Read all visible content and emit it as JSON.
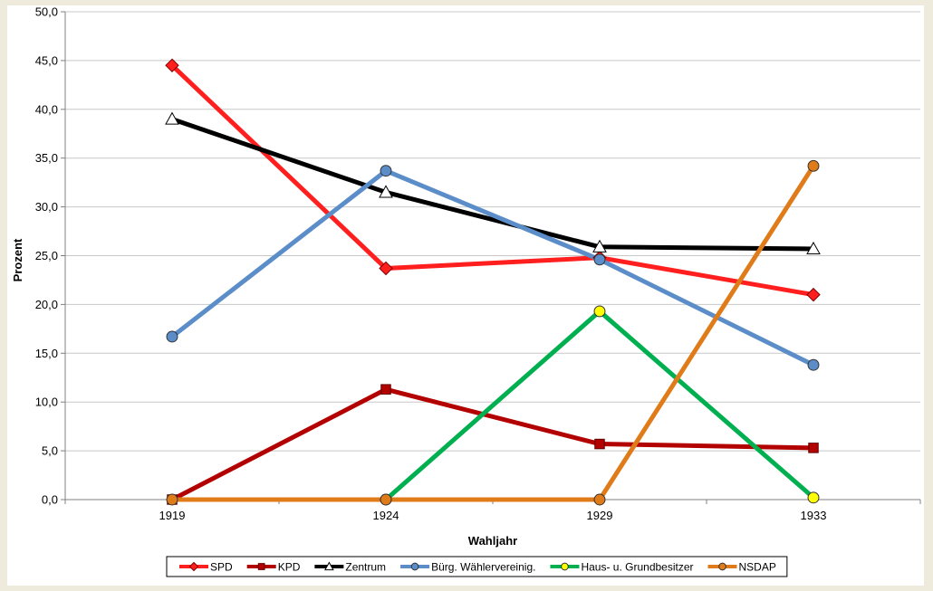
{
  "chart_data": {
    "type": "line",
    "title": "",
    "xlabel": "Wahljahr",
    "ylabel": "Prozent",
    "categories": [
      "1919",
      "1924",
      "1929",
      "1933"
    ],
    "ylim": [
      0,
      50
    ],
    "yticks": [
      "0,0",
      "5,0",
      "10,0",
      "15,0",
      "20,0",
      "25,0",
      "30,0",
      "35,0",
      "40,0",
      "45,0",
      "50,0"
    ],
    "grid": true,
    "legend_position": "bottom",
    "series": [
      {
        "name": "SPD",
        "values": [
          44.5,
          23.7,
          24.8,
          21.0
        ],
        "color": "#ff1f1f",
        "marker": "diamond"
      },
      {
        "name": "KPD",
        "values": [
          0.0,
          11.3,
          5.7,
          5.3
        ],
        "color": "#b30000",
        "marker": "square"
      },
      {
        "name": "Zentrum",
        "values": [
          39.0,
          31.5,
          25.9,
          25.7
        ],
        "color": "#000000",
        "marker": "triangle"
      },
      {
        "name": "Bürg. Wählervereinig.",
        "values": [
          16.7,
          33.7,
          24.6,
          13.8
        ],
        "color": "#5b8dc9",
        "marker": "circle"
      },
      {
        "name": "Haus- u. Grundbesitzer",
        "values": [
          null,
          0.0,
          19.3,
          0.2
        ],
        "color": "#00b050",
        "marker": "circle-yellow"
      },
      {
        "name": "NSDAP",
        "values": [
          0.0,
          0.0,
          0.0,
          34.2
        ],
        "color": "#e07b1a",
        "marker": "circle"
      }
    ]
  }
}
